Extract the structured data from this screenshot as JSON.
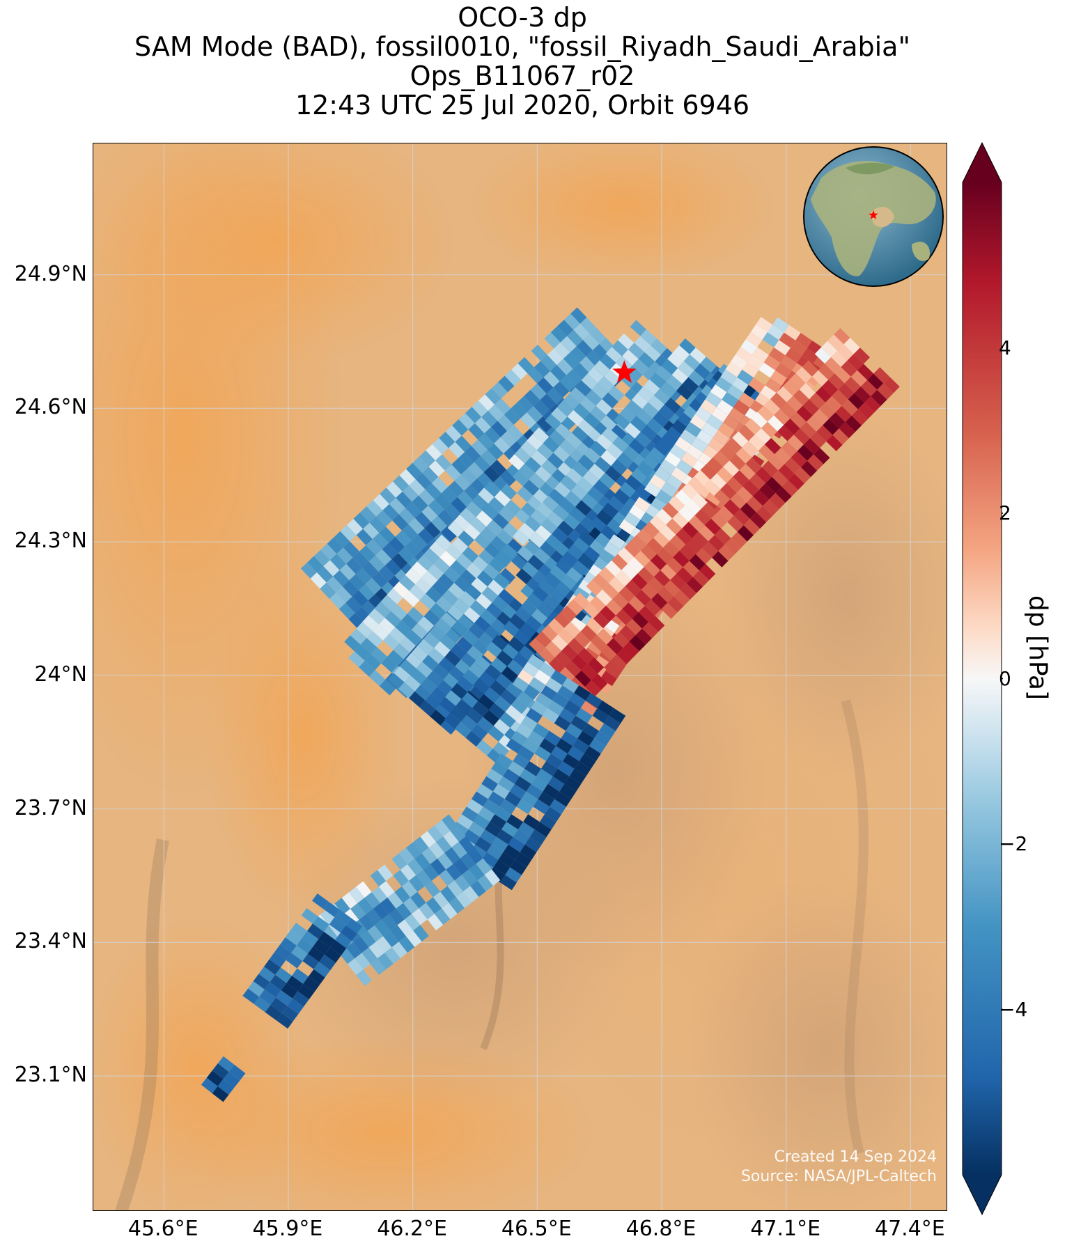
{
  "title": {
    "line1": "OCO-3 dp",
    "line2": "SAM Mode (BAD), fossil0010, \"fossil_Riyadh_Saudi_Arabia\"",
    "line3": "Ops_B11067_r02",
    "line4": "12:43 UTC 25 Jul 2020, Orbit 6946"
  },
  "map": {
    "lon_range": [
      45.43,
      47.49
    ],
    "lat_range": [
      22.795,
      25.195
    ],
    "lat_ticks": [
      "24.9°N",
      "24.6°N",
      "24.3°N",
      "24°N",
      "23.7°N",
      "23.4°N",
      "23.1°N"
    ],
    "lon_ticks": [
      "45.6°E",
      "45.9°E",
      "46.2°E",
      "46.5°E",
      "46.8°E",
      "47.1°E",
      "47.4°E"
    ],
    "target": {
      "lon": 46.71,
      "lat": 24.68,
      "marker": "red-star"
    },
    "credit_line1": "Created 14 Sep 2024",
    "credit_line2": "Source: NASA/JPL-Caltech",
    "inset": "globe-locator",
    "basemap": "desert-satellite-imagery"
  },
  "colorbar": {
    "label": "dp [hPa]",
    "range": [
      -6,
      6
    ],
    "extend": "both",
    "cmap": "RdBu_r",
    "ticks": [
      4,
      2,
      0,
      -2,
      -4
    ],
    "tick_labels": [
      "4",
      "2",
      "0",
      "−2",
      "−4"
    ]
  },
  "chart_data": {
    "type": "heatmap",
    "variable": "dp",
    "units": "hPa",
    "color_range": [
      -6,
      6
    ],
    "swaths": [
      {
        "start": [
          45.93,
          24.24
        ],
        "end": [
          46.6,
          24.83
        ],
        "dp_across": [
          -2.0,
          -3.0,
          -4.0
        ],
        "mean_dp": -2.5
      },
      {
        "start": [
          46.02,
          24.06
        ],
        "end": [
          46.74,
          24.8
        ],
        "dp_across": [
          -1.5,
          -2.5,
          -3.5
        ],
        "mean_dp": -2.3
      },
      {
        "start": [
          46.14,
          23.99
        ],
        "end": [
          46.85,
          24.75
        ],
        "dp_across": [
          -2.0,
          -4.0,
          -5.0
        ],
        "mean_dp": -3.4
      },
      {
        "start": [
          46.25,
          23.92
        ],
        "end": [
          46.95,
          24.7
        ],
        "dp_across": [
          -4.0,
          -5.0,
          -2.0
        ],
        "mean_dp": -3.9
      },
      {
        "start": [
          46.44,
          23.98
        ],
        "end": [
          47.05,
          24.82
        ],
        "dp_across": [
          -1.0,
          1.5,
          3.0
        ],
        "mean_dp": 0.8
      },
      {
        "start": [
          46.48,
          24.07
        ],
        "end": [
          47.23,
          24.78
        ],
        "dp_across": [
          1.5,
          3.5,
          4.5
        ],
        "mean_dp": 3.0
      },
      {
        "start": [
          46.27,
          23.62
        ],
        "end": [
          46.55,
          24.02
        ],
        "dp_across": [
          -3.0,
          -4.5,
          -5.5
        ],
        "mean_dp": -4.5
      },
      {
        "start": [
          45.96,
          23.45
        ],
        "end": [
          46.29,
          23.69
        ],
        "dp_across": [
          -1.5,
          -3.0,
          -2.0
        ],
        "mean_dp": -2.4
      },
      {
        "start": [
          45.79,
          23.28
        ],
        "end": [
          45.97,
          23.51
        ],
        "dp_across": [
          -4.0,
          -5.5
        ],
        "mean_dp": -4.8
      },
      {
        "start": [
          45.69,
          23.08
        ],
        "end": [
          45.74,
          23.14
        ],
        "dp_across": [
          -5.0
        ],
        "mean_dp": -5.0
      }
    ]
  }
}
